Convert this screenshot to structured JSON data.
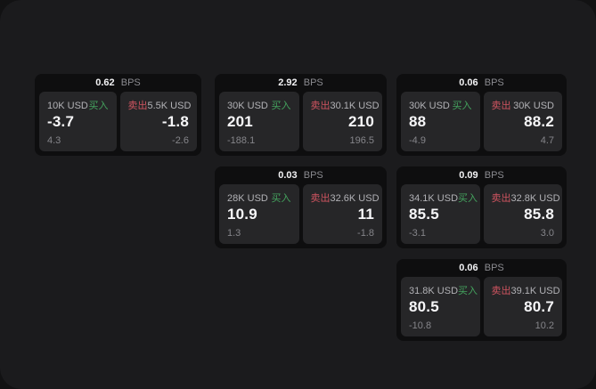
{
  "bps_unit_label": "BPS",
  "buy_label": "买入",
  "sell_label": "卖出",
  "colors": {
    "buy_accent": "#44a35e",
    "sell_accent": "#cf5460",
    "window_background": "#1b1b1d",
    "card_background": "#0e0e0f",
    "panel_background": "#262628"
  },
  "cards": [
    {
      "bps": "0.62",
      "row": 0,
      "col": 0,
      "buy_amount": "10K USD",
      "buy_price": "-3.7",
      "buy_change": "4.3",
      "sell_amount": "5.5K USD",
      "sell_price": "-1.8",
      "sell_change": "-2.6"
    },
    {
      "bps": "2.92",
      "row": 0,
      "col": 1,
      "buy_amount": "30K USD",
      "buy_price": "201",
      "buy_change": "-188.1",
      "sell_amount": "30.1K USD",
      "sell_price": "210",
      "sell_change": "196.5"
    },
    {
      "bps": "0.06",
      "row": 0,
      "col": 2,
      "buy_amount": "30K USD",
      "buy_price": "88",
      "buy_change": "-4.9",
      "sell_amount": "30K USD",
      "sell_price": "88.2",
      "sell_change": "4.7"
    },
    {
      "bps": "0.03",
      "row": 1,
      "col": 1,
      "buy_amount": "28K USD",
      "buy_price": "10.9",
      "buy_change": "1.3",
      "sell_amount": "32.6K USD",
      "sell_price": "11",
      "sell_change": "-1.8"
    },
    {
      "bps": "0.09",
      "row": 1,
      "col": 2,
      "buy_amount": "34.1K USD",
      "buy_price": "85.5",
      "buy_change": "-3.1",
      "sell_amount": "32.8K USD",
      "sell_price": "85.8",
      "sell_change": "3.0"
    },
    {
      "bps": "0.06",
      "row": 2,
      "col": 2,
      "buy_amount": "31.8K USD",
      "buy_price": "80.5",
      "buy_change": "-10.8",
      "sell_amount": "39.1K USD",
      "sell_price": "80.7",
      "sell_change": "10.2"
    }
  ]
}
